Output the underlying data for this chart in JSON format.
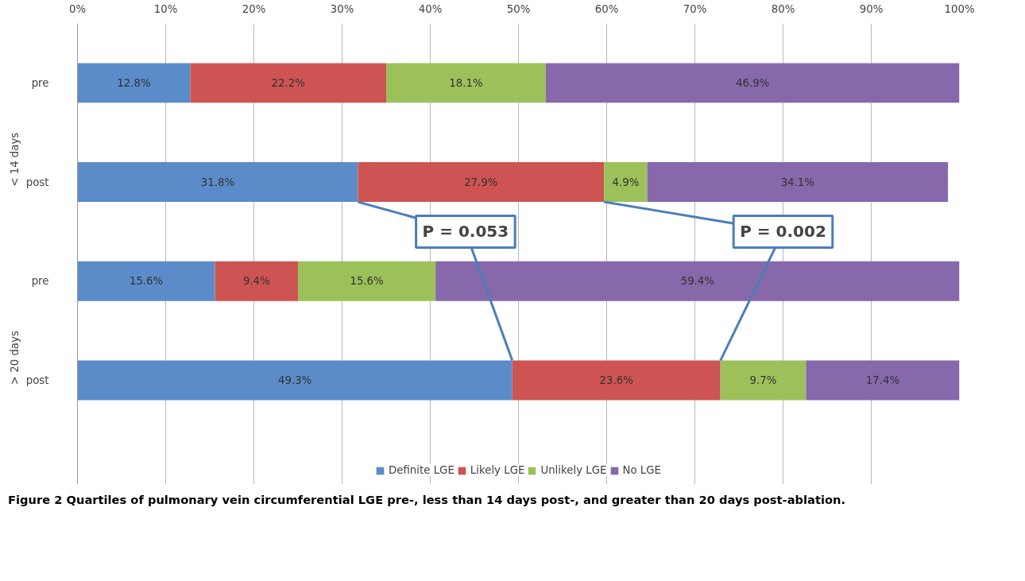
{
  "chart_data": {
    "type": "bar",
    "orientation": "horizontal",
    "stacked": true,
    "categories": [
      "pre",
      "post",
      "pre",
      "post"
    ],
    "series": [
      {
        "name": "Definite LGE",
        "color": "#5b8cc9",
        "values": [
          12.8,
          31.8,
          15.6,
          49.3
        ],
        "value_labels": [
          "12.8%",
          "31.8%",
          "15.6%",
          "49.3%"
        ]
      },
      {
        "name": "Likely LGE",
        "color": "#cd5452",
        "values": [
          22.2,
          27.9,
          9.4,
          23.6
        ],
        "value_labels": [
          "22.2%",
          "27.9%",
          "9.4%",
          "23.6%"
        ]
      },
      {
        "name": "Unlikely LGE",
        "color": "#9dc15a",
        "values": [
          18.1,
          4.9,
          15.6,
          9.7
        ],
        "value_labels": [
          "18.1%",
          "4.9%",
          "15.6%",
          "9.7%"
        ]
      },
      {
        "name": "No LGE",
        "color": "#8768aa",
        "values": [
          46.9,
          34.1,
          59.4,
          17.4
        ],
        "value_labels": [
          "46.9%",
          "34.1%",
          "59.4%",
          "17.4%"
        ]
      }
    ],
    "xlim": [
      0,
      100
    ],
    "xticks": [
      {
        "value": 0,
        "label": "0%"
      },
      {
        "value": 10,
        "label": "10%"
      },
      {
        "value": 20,
        "label": "20%"
      },
      {
        "value": 30,
        "label": "30%"
      },
      {
        "value": 40,
        "label": "40%"
      },
      {
        "value": 50,
        "label": "50%"
      },
      {
        "value": 60,
        "label": "60%"
      },
      {
        "value": 70,
        "label": "70%"
      },
      {
        "value": 80,
        "label": "80%"
      },
      {
        "value": 90,
        "label": "90%"
      },
      {
        "value": 100,
        "label": "100%"
      }
    ],
    "grid": "x",
    "legend": "bottom",
    "annotations": [
      "< 14 days",
      "> 20 days",
      {
        "text": "P = 0.053",
        "x": 49.3
      },
      {
        "text": "P = 0.002",
        "x": 72.9
      },
      "Figure 2 Quartiles of pulmonary vein circumferential LGE pre-, less than 14 days post-, and greater than 20 days post-ablation."
    ]
  }
}
